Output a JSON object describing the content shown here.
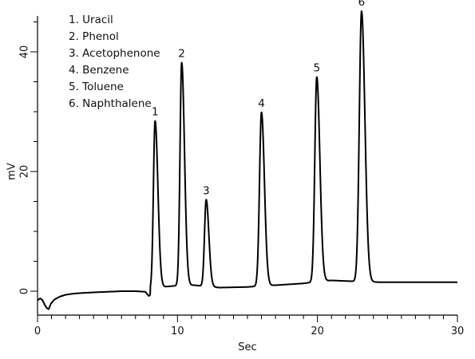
{
  "chart_data": {
    "type": "line",
    "title": "",
    "xlabel": "Sec",
    "ylabel": "mV",
    "xlim": [
      0,
      30
    ],
    "ylim": [
      -4,
      46
    ],
    "grid": false,
    "x_ticks": [
      0,
      10,
      20,
      30
    ],
    "y_ticks": [
      0,
      20,
      40
    ],
    "x_minor_step": 1,
    "y_minor_step": 5,
    "legend": {
      "placement": "top-left",
      "items": [
        "1. Uracil",
        "2. Phenol",
        "3. Acetophenone",
        "4. Benzene",
        "5. Toluene",
        "6. Naphthalene"
      ]
    },
    "baseline": {
      "x": [
        0.0,
        0.2,
        0.35,
        0.5,
        0.65,
        0.8,
        0.95,
        1.2,
        1.6,
        2.0,
        2.6,
        3.2,
        4.0,
        5.0,
        6.0,
        7.0,
        7.7,
        7.95,
        8.05
      ],
      "y": [
        -1.5,
        -1.2,
        -1.5,
        -2.2,
        -2.8,
        -3.0,
        -2.1,
        -1.4,
        -0.9,
        -0.6,
        -0.4,
        -0.3,
        -0.2,
        -0.1,
        0.0,
        0.0,
        -0.1,
        -0.8,
        -0.6
      ]
    },
    "peaks": [
      {
        "label": "1",
        "rt": 8.4,
        "height": 28.0,
        "sigma_left": 0.12,
        "sigma_right": 0.2
      },
      {
        "label": "2",
        "rt": 10.3,
        "height": 37.2,
        "sigma_left": 0.12,
        "sigma_right": 0.2
      },
      {
        "label": "3",
        "rt": 12.05,
        "height": 14.5,
        "sigma_left": 0.12,
        "sigma_right": 0.19
      },
      {
        "label": "4",
        "rt": 16.0,
        "height": 29.0,
        "sigma_left": 0.14,
        "sigma_right": 0.21
      },
      {
        "label": "5",
        "rt": 19.95,
        "height": 34.2,
        "sigma_left": 0.14,
        "sigma_right": 0.22
      },
      {
        "label": "6",
        "rt": 23.15,
        "height": 45.2,
        "sigma_left": 0.16,
        "sigma_right": 0.24
      }
    ],
    "drift": {
      "x": [
        8.05,
        8.9,
        10.3,
        11.2,
        12.05,
        13.0,
        15.0,
        16.0,
        17.0,
        19.0,
        19.95,
        21.0,
        23.15,
        24.5,
        27.0,
        30.0
      ],
      "y": [
        0.3,
        0.7,
        1.0,
        1.0,
        0.8,
        0.6,
        0.7,
        0.9,
        1.0,
        1.3,
        1.6,
        1.8,
        1.6,
        1.5,
        1.5,
        1.5
      ]
    }
  }
}
